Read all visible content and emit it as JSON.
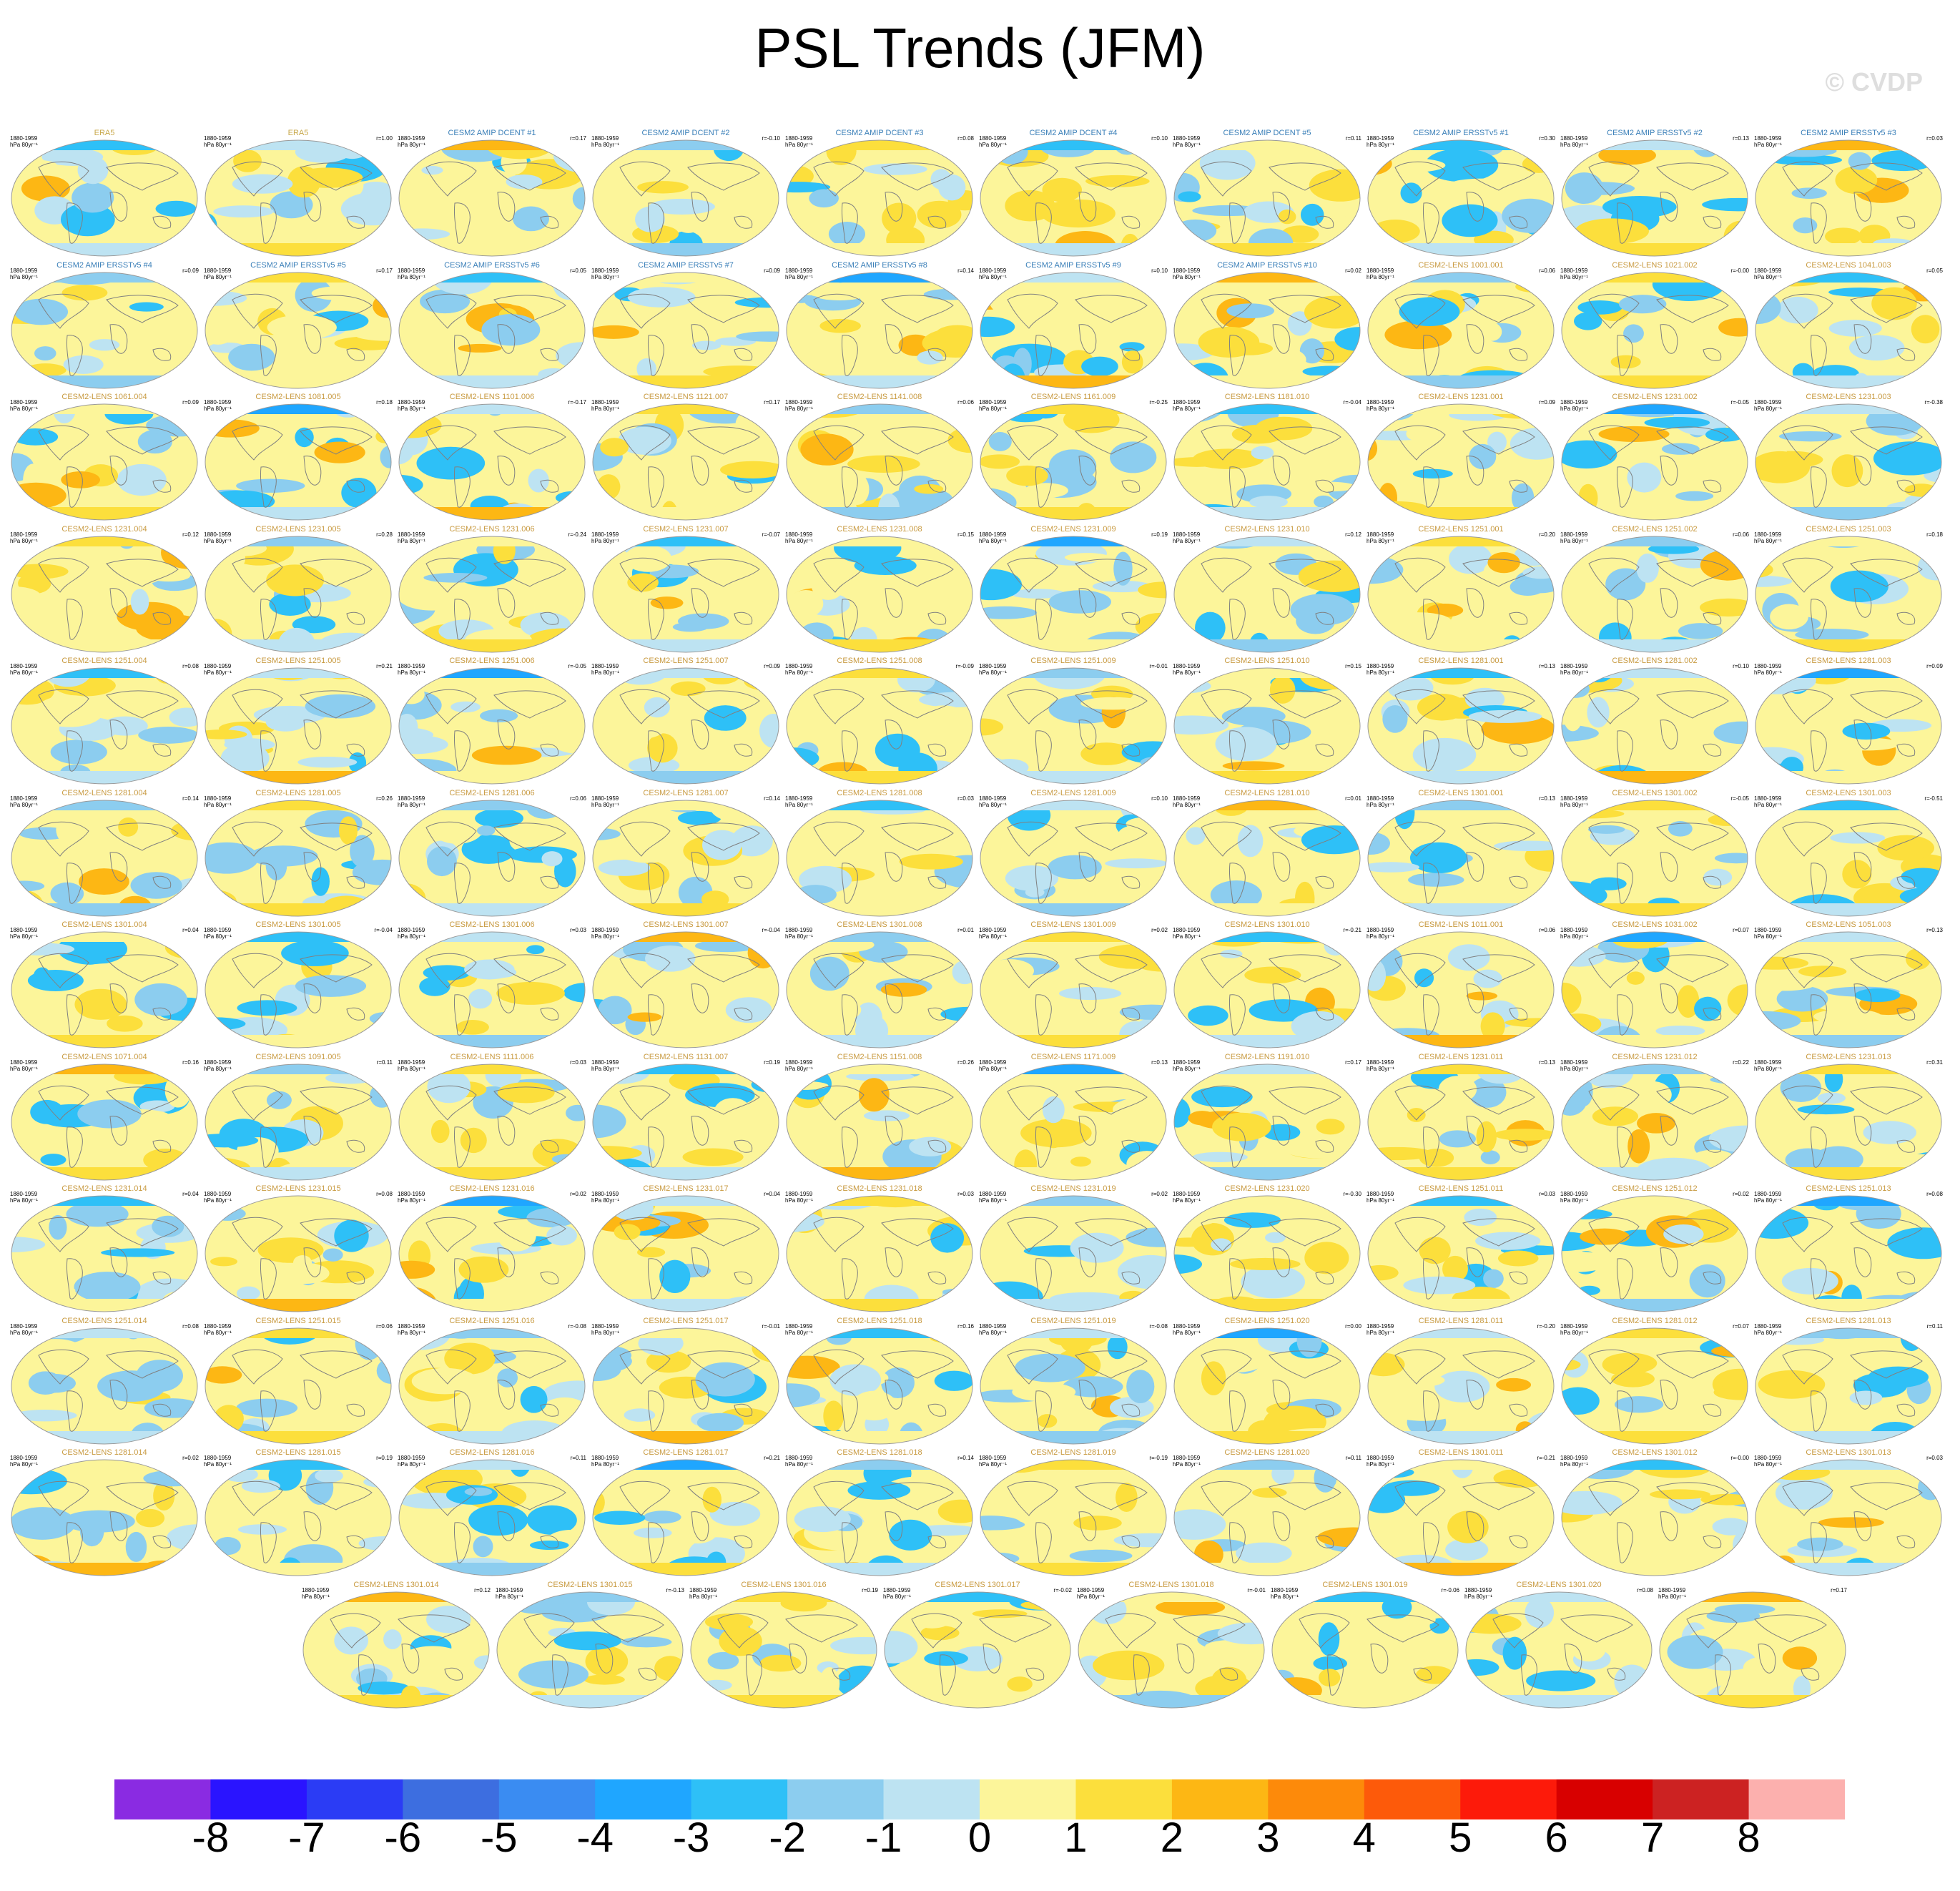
{
  "title": "PSL Trends (JFM)",
  "watermark": "© CVDP",
  "colorbar": {
    "colors": [
      "#8a2be2",
      "#2a14ff",
      "#2b3cf5",
      "#3d6ee0",
      "#3a8cf2",
      "#1fa6ff",
      "#2ec0f7",
      "#8ccdef",
      "#bde3f2",
      "#fcf59a",
      "#fcdf3c",
      "#fdb714",
      "#fd8a0a",
      "#fd5a0a",
      "#fd1a0a",
      "#d80000",
      "#cc2222",
      "#fcb0ae"
    ],
    "ticks": [
      "-8",
      "-7",
      "-6",
      "-5",
      "-4",
      "-3",
      "-2",
      "-1",
      "0",
      "1",
      "2",
      "3",
      "4",
      "5",
      "6",
      "7",
      "8"
    ]
  },
  "chart_data": {
    "type": "heatmap",
    "title": "PSL Trends (JFM)",
    "period": "1880-1959",
    "units": "hPa 80yr⁻¹",
    "levels": [
      -8,
      -7,
      -6,
      -5,
      -4,
      -3,
      -2,
      -1,
      0,
      1,
      2,
      3,
      4,
      5,
      6,
      7,
      8
    ],
    "panels": [
      {
        "title": "ERA5",
        "r": ""
      },
      {
        "title": "ERA5",
        "r": "r=1.00"
      },
      {
        "title": "CESM2 AMIP DCENT #1",
        "r": "r=0.17"
      },
      {
        "title": "CESM2 AMIP DCENT #2",
        "r": "r=-0.10"
      },
      {
        "title": "CESM2 AMIP DCENT #3",
        "r": "r=0.08"
      },
      {
        "title": "CESM2 AMIP DCENT #4",
        "r": "r=0.10"
      },
      {
        "title": "CESM2 AMIP DCENT #5",
        "r": "r=0.11"
      },
      {
        "title": "CESM2 AMIP ERSSTv5 #1",
        "r": "r=0.30"
      },
      {
        "title": "CESM2 AMIP ERSSTv5 #2",
        "r": "r=0.13"
      },
      {
        "title": "CESM2 AMIP ERSSTv5 #3",
        "r": "r=0.03"
      },
      {
        "title": "CESM2 AMIP ERSSTv5 #4",
        "r": "r=0.09"
      },
      {
        "title": "CESM2 AMIP ERSSTv5 #5",
        "r": "r=0.17"
      },
      {
        "title": "CESM2 AMIP ERSSTv5 #6",
        "r": "r=0.05"
      },
      {
        "title": "CESM2 AMIP ERSSTv5 #7",
        "r": "r=0.09"
      },
      {
        "title": "CESM2 AMIP ERSSTv5 #8",
        "r": "r=0.14"
      },
      {
        "title": "CESM2 AMIP ERSSTv5 #9",
        "r": "r=0.10"
      },
      {
        "title": "CESM2 AMIP ERSSTv5 #10",
        "r": "r=0.02"
      },
      {
        "title": "CESM2-LENS 1001.001",
        "r": "r=0.06"
      },
      {
        "title": "CESM2-LENS 1021.002",
        "r": "r=-0.00"
      },
      {
        "title": "CESM2-LENS 1041.003",
        "r": "r=0.05"
      },
      {
        "title": "CESM2-LENS 1061.004",
        "r": "r=0.09"
      },
      {
        "title": "CESM2-LENS 1081.005",
        "r": "r=0.18"
      },
      {
        "title": "CESM2-LENS 1101.006",
        "r": "r=-0.17"
      },
      {
        "title": "CESM2-LENS 1121.007",
        "r": "r=0.17"
      },
      {
        "title": "CESM2-LENS 1141.008",
        "r": "r=0.06"
      },
      {
        "title": "CESM2-LENS 1161.009",
        "r": "r=-0.25"
      },
      {
        "title": "CESM2-LENS 1181.010",
        "r": "r=-0.04"
      },
      {
        "title": "CESM2-LENS 1231.001",
        "r": "r=0.09"
      },
      {
        "title": "CESM2-LENS 1231.002",
        "r": "r=-0.05"
      },
      {
        "title": "CESM2-LENS 1231.003",
        "r": "r=-0.38"
      },
      {
        "title": "CESM2-LENS 1231.004",
        "r": "r=0.12"
      },
      {
        "title": "CESM2-LENS 1231.005",
        "r": "r=0.28"
      },
      {
        "title": "CESM2-LENS 1231.006",
        "r": "r=-0.24"
      },
      {
        "title": "CESM2-LENS 1231.007",
        "r": "r=-0.07"
      },
      {
        "title": "CESM2-LENS 1231.008",
        "r": "r=0.15"
      },
      {
        "title": "CESM2-LENS 1231.009",
        "r": "r=0.19"
      },
      {
        "title": "CESM2-LENS 1231.010",
        "r": "r=0.12"
      },
      {
        "title": "CESM2-LENS 1251.001",
        "r": "r=0.20"
      },
      {
        "title": "CESM2-LENS 1251.002",
        "r": "r=0.06"
      },
      {
        "title": "CESM2-LENS 1251.003",
        "r": "r=0.18"
      },
      {
        "title": "CESM2-LENS 1251.004",
        "r": "r=0.08"
      },
      {
        "title": "CESM2-LENS 1251.005",
        "r": "r=0.21"
      },
      {
        "title": "CESM2-LENS 1251.006",
        "r": "r=-0.05"
      },
      {
        "title": "CESM2-LENS 1251.007",
        "r": "r=0.09"
      },
      {
        "title": "CESM2-LENS 1251.008",
        "r": "r=-0.09"
      },
      {
        "title": "CESM2-LENS 1251.009",
        "r": "r=-0.01"
      },
      {
        "title": "CESM2-LENS 1251.010",
        "r": "r=0.15"
      },
      {
        "title": "CESM2-LENS 1281.001",
        "r": "r=0.13"
      },
      {
        "title": "CESM2-LENS 1281.002",
        "r": "r=0.10"
      },
      {
        "title": "CESM2-LENS 1281.003",
        "r": "r=0.09"
      },
      {
        "title": "CESM2-LENS 1281.004",
        "r": "r=0.14"
      },
      {
        "title": "CESM2-LENS 1281.005",
        "r": "r=0.26"
      },
      {
        "title": "CESM2-LENS 1281.006",
        "r": "r=0.06"
      },
      {
        "title": "CESM2-LENS 1281.007",
        "r": "r=0.14"
      },
      {
        "title": "CESM2-LENS 1281.008",
        "r": "r=0.03"
      },
      {
        "title": "CESM2-LENS 1281.009",
        "r": "r=0.10"
      },
      {
        "title": "CESM2-LENS 1281.010",
        "r": "r=0.01"
      },
      {
        "title": "CESM2-LENS 1301.001",
        "r": "r=0.13"
      },
      {
        "title": "CESM2-LENS 1301.002",
        "r": "r=-0.05"
      },
      {
        "title": "CESM2-LENS 1301.003",
        "r": "r=-0.51"
      },
      {
        "title": "CESM2-LENS 1301.004",
        "r": "r=0.04"
      },
      {
        "title": "CESM2-LENS 1301.005",
        "r": "r=-0.04"
      },
      {
        "title": "CESM2-LENS 1301.006",
        "r": "r=0.03"
      },
      {
        "title": "CESM2-LENS 1301.007",
        "r": "r=-0.04"
      },
      {
        "title": "CESM2-LENS 1301.008",
        "r": "r=0.01"
      },
      {
        "title": "CESM2-LENS 1301.009",
        "r": "r=0.02"
      },
      {
        "title": "CESM2-LENS 1301.010",
        "r": "r=-0.21"
      },
      {
        "title": "CESM2-LENS 1011.001",
        "r": "r=0.06"
      },
      {
        "title": "CESM2-LENS 1031.002",
        "r": "r=0.07"
      },
      {
        "title": "CESM2-LENS 1051.003",
        "r": "r=0.13"
      },
      {
        "title": "CESM2-LENS 1071.004",
        "r": "r=0.16"
      },
      {
        "title": "CESM2-LENS 1091.005",
        "r": "r=0.11"
      },
      {
        "title": "CESM2-LENS 1111.006",
        "r": "r=0.03"
      },
      {
        "title": "CESM2-LENS 1131.007",
        "r": "r=0.19"
      },
      {
        "title": "CESM2-LENS 1151.008",
        "r": "r=0.26"
      },
      {
        "title": "CESM2-LENS 1171.009",
        "r": "r=0.13"
      },
      {
        "title": "CESM2-LENS 1191.010",
        "r": "r=0.17"
      },
      {
        "title": "CESM2-LENS 1231.011",
        "r": "r=0.13"
      },
      {
        "title": "CESM2-LENS 1231.012",
        "r": "r=0.22"
      },
      {
        "title": "CESM2-LENS 1231.013",
        "r": "r=0.31"
      },
      {
        "title": "CESM2-LENS 1231.014",
        "r": "r=0.04"
      },
      {
        "title": "CESM2-LENS 1231.015",
        "r": "r=0.08"
      },
      {
        "title": "CESM2-LENS 1231.016",
        "r": "r=0.02"
      },
      {
        "title": "CESM2-LENS 1231.017",
        "r": "r=0.04"
      },
      {
        "title": "CESM2-LENS 1231.018",
        "r": "r=0.03"
      },
      {
        "title": "CESM2-LENS 1231.019",
        "r": "r=0.02"
      },
      {
        "title": "CESM2-LENS 1231.020",
        "r": "r=-0.30"
      },
      {
        "title": "CESM2-LENS 1251.011",
        "r": "r=0.03"
      },
      {
        "title": "CESM2-LENS 1251.012",
        "r": "r=0.02"
      },
      {
        "title": "CESM2-LENS 1251.013",
        "r": "r=0.08"
      },
      {
        "title": "CESM2-LENS 1251.014",
        "r": "r=0.08"
      },
      {
        "title": "CESM2-LENS 1251.015",
        "r": "r=0.06"
      },
      {
        "title": "CESM2-LENS 1251.016",
        "r": "r=-0.08"
      },
      {
        "title": "CESM2-LENS 1251.017",
        "r": "r=-0.01"
      },
      {
        "title": "CESM2-LENS 1251.018",
        "r": "r=0.16"
      },
      {
        "title": "CESM2-LENS 1251.019",
        "r": "r=-0.08"
      },
      {
        "title": "CESM2-LENS 1251.020",
        "r": "r=0.00"
      },
      {
        "title": "CESM2-LENS 1281.011",
        "r": "r=-0.20"
      },
      {
        "title": "CESM2-LENS 1281.012",
        "r": "r=0.07"
      },
      {
        "title": "CESM2-LENS 1281.013",
        "r": "r=0.11"
      },
      {
        "title": "CESM2-LENS 1281.014",
        "r": "r=0.02"
      },
      {
        "title": "CESM2-LENS 1281.015",
        "r": "r=0.19"
      },
      {
        "title": "CESM2-LENS 1281.016",
        "r": "r=0.11"
      },
      {
        "title": "CESM2-LENS 1281.017",
        "r": "r=0.21"
      },
      {
        "title": "CESM2-LENS 1281.018",
        "r": "r=0.14"
      },
      {
        "title": "CESM2-LENS 1281.019",
        "r": "r=-0.19"
      },
      {
        "title": "CESM2-LENS 1281.020",
        "r": "r=0.11"
      },
      {
        "title": "CESM2-LENS 1301.011",
        "r": "r=-0.21"
      },
      {
        "title": "CESM2-LENS 1301.012",
        "r": "r=-0.00"
      },
      {
        "title": "CESM2-LENS 1301.013",
        "r": "r=0.03"
      },
      {
        "title": "CESM2-LENS 1301.014",
        "r": "r=0.12"
      },
      {
        "title": "CESM2-LENS 1301.015",
        "r": "r=-0.13"
      },
      {
        "title": "CESM2-LENS 1301.016",
        "r": "r=0.19"
      },
      {
        "title": "CESM2-LENS 1301.017",
        "r": "r=-0.02"
      },
      {
        "title": "CESM2-LENS 1301.018",
        "r": "r=-0.01"
      },
      {
        "title": "CESM2-LENS 1301.019",
        "r": "r=-0.06"
      },
      {
        "title": "CESM2-LENS 1301.020",
        "r": "r=0.08"
      },
      {
        "title": "",
        "r": "r=0.17"
      }
    ]
  }
}
